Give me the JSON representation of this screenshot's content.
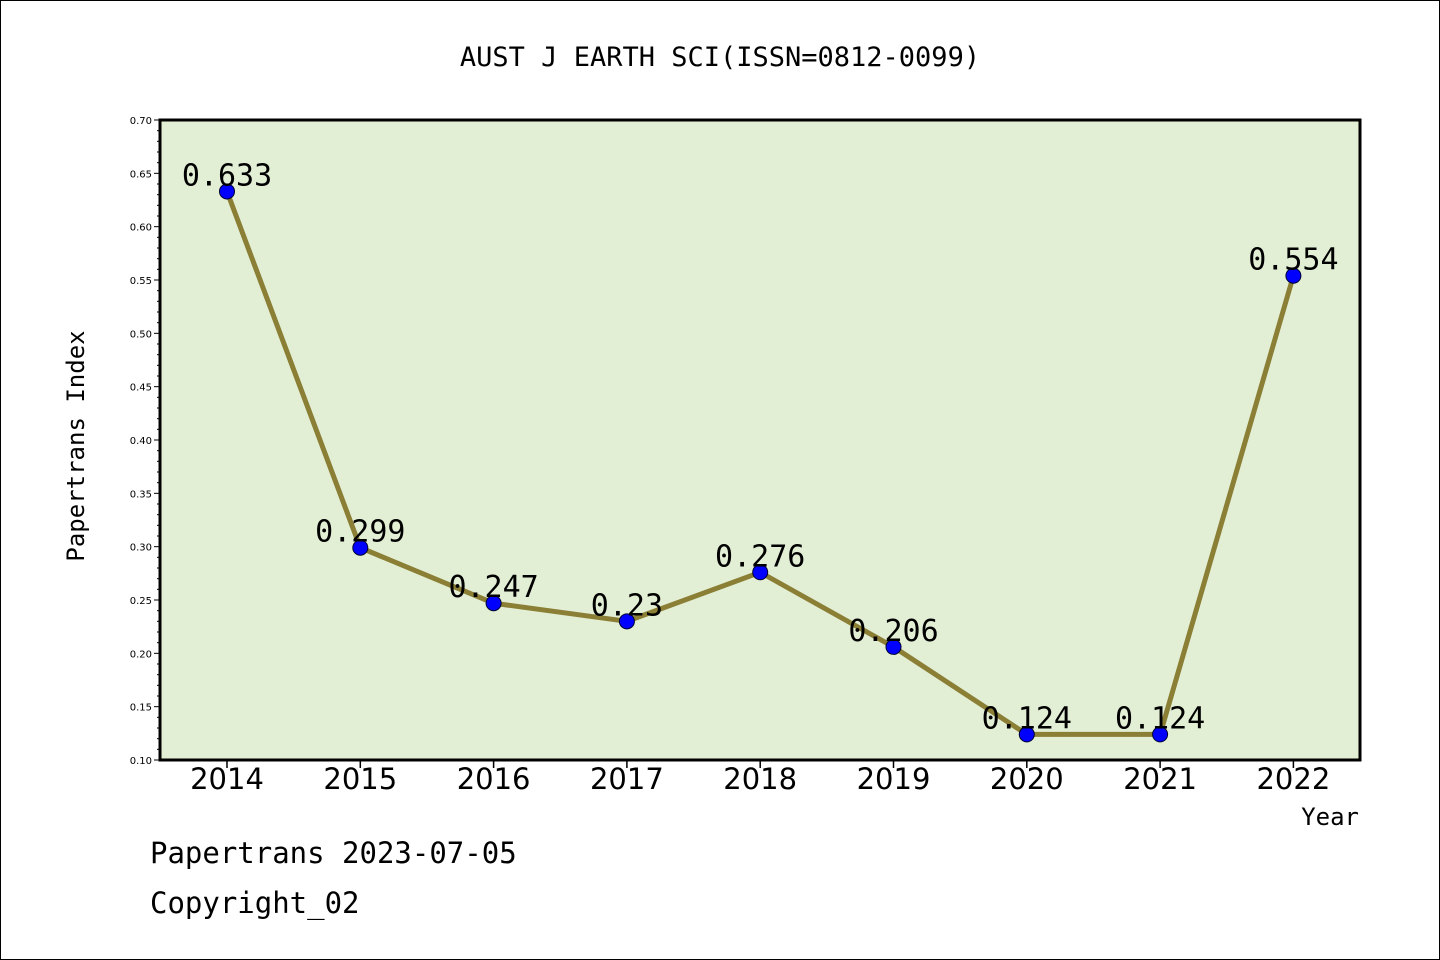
{
  "chart_data": {
    "type": "line",
    "title": "AUST J EARTH SCI(ISSN=0812-0099)",
    "xlabel": "Year",
    "ylabel": "Papertrans Index",
    "categories": [
      "2014",
      "2015",
      "2016",
      "2017",
      "2018",
      "2019",
      "2020",
      "2021",
      "2022"
    ],
    "values": [
      0.633,
      0.299,
      0.247,
      0.23,
      0.276,
      0.206,
      0.124,
      0.124,
      0.554
    ],
    "data_labels": [
      "0.633",
      "0.299",
      "0.247",
      "0.23",
      "0.276",
      "0.206",
      "0.124",
      "0.124",
      "0.554"
    ],
    "ylim": [
      0.1,
      0.7
    ],
    "y_ticks": [
      "0.10",
      "0.15",
      "0.20",
      "0.25",
      "0.30",
      "0.35",
      "0.40",
      "0.45",
      "0.50",
      "0.55",
      "0.60",
      "0.65",
      "0.70"
    ],
    "grid": false,
    "legend": "none",
    "colors": {
      "plot_background": "#e2efd5",
      "line": "#8b7e35",
      "marker": "#0000ff"
    }
  },
  "footer": {
    "source": "Papertrans 2023-07-05",
    "copyright": "Copyright_02"
  }
}
